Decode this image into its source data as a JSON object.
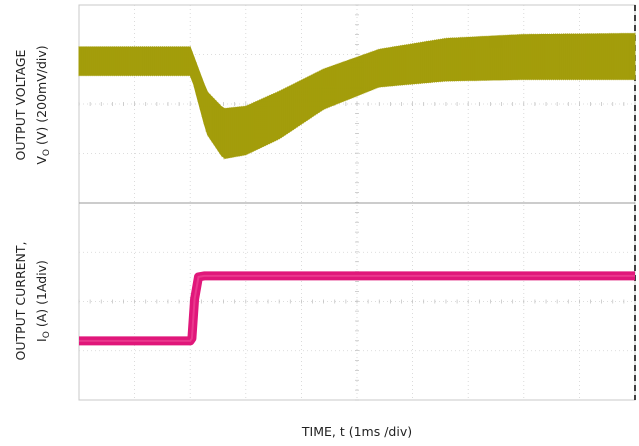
{
  "chart_data": [
    {
      "type": "line",
      "panel": "upper",
      "ylabel_line1": "OUTPUT VOLTAGE",
      "ylabel_line2_prefix": "V",
      "ylabel_line2_sub": "O",
      "ylabel_line2_suffix": " (V) (200mV/div)",
      "xlabel": "",
      "xlim": [
        0,
        10
      ],
      "ylim": [
        0,
        4
      ],
      "grid": true,
      "series": [
        {
          "color": "#a39d0b",
          "envelope_upper": [
            [
              0,
              3.15
            ],
            [
              2.0,
              3.15
            ],
            [
              2.05,
              3.0
            ],
            [
              2.3,
              2.25
            ],
            [
              2.6,
              1.9
            ],
            [
              3.0,
              1.95
            ],
            [
              3.6,
              2.25
            ],
            [
              4.4,
              2.7
            ],
            [
              5.4,
              3.1
            ],
            [
              6.6,
              3.32
            ],
            [
              8.0,
              3.4
            ],
            [
              10,
              3.42
            ]
          ],
          "envelope_lower": [
            [
              0,
              2.58
            ],
            [
              2.0,
              2.58
            ],
            [
              2.05,
              2.45
            ],
            [
              2.3,
              1.4
            ],
            [
              2.6,
              0.9
            ],
            [
              3.0,
              0.98
            ],
            [
              3.6,
              1.3
            ],
            [
              4.4,
              1.9
            ],
            [
              5.4,
              2.35
            ],
            [
              6.6,
              2.47
            ],
            [
              8.0,
              2.5
            ],
            [
              10,
              2.5
            ]
          ]
        }
      ]
    },
    {
      "type": "line",
      "panel": "lower",
      "ylabel_line1": "OUTPUT CURRENT,",
      "ylabel_line2_prefix": "I",
      "ylabel_line2_sub": "O",
      "ylabel_line2_suffix": " (A)  (1Adiv)",
      "xlabel": "TIME, t (1ms /div)",
      "xlim": [
        0,
        10
      ],
      "ylim": [
        0,
        4
      ],
      "grid": true,
      "series": [
        {
          "color": "#e0177a",
          "points": [
            [
              0,
              1.2
            ],
            [
              2.0,
              1.2
            ],
            [
              2.03,
              1.25
            ],
            [
              2.08,
              2.05
            ],
            [
              2.15,
              2.5
            ],
            [
              2.25,
              2.52
            ],
            [
              10,
              2.52
            ]
          ]
        }
      ]
    }
  ]
}
